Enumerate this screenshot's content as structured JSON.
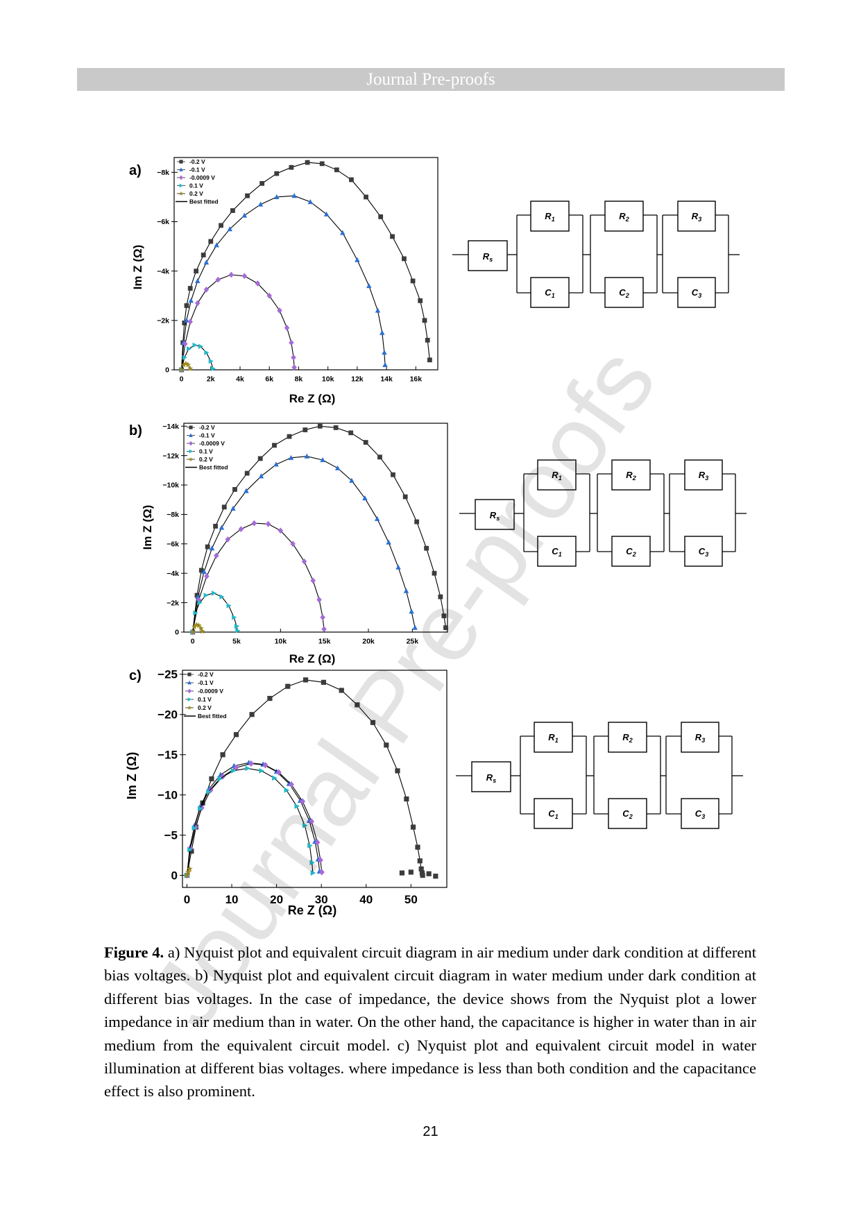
{
  "header": {
    "journal": "Journal Pre-proofs"
  },
  "watermark": "Journal Pre-proofs",
  "colors": {
    "-0.2 V": "#3c3c3c",
    "-0.1 V": "#2c6fd3",
    "-0.0009 V": "#a56bd6",
    "0.1 V": "#22b8c9",
    "0.2 V": "#9a8a1e",
    "fit": "#000000"
  },
  "legend_labels": [
    "-0.2 V",
    "-0.1 V",
    "-0.0009 V",
    "0.1 V",
    "0.2 V",
    "Best fitted"
  ],
  "circuit_labels": {
    "rs": "R_s",
    "r": [
      "R_1",
      "R_2",
      "R_3"
    ],
    "c": [
      "C_1",
      "C_2",
      "C_3"
    ]
  },
  "chart_data": [
    {
      "panel": "a)",
      "type": "scatter",
      "xlabel": "Re Z (Ω)",
      "ylabel": "Im Z (Ω)",
      "xlim": [
        -500,
        17500
      ],
      "ylim": [
        0,
        -8600
      ],
      "xticks": [
        0,
        2000,
        4000,
        6000,
        8000,
        10000,
        12000,
        14000,
        16000
      ],
      "xtick_labels": [
        "0",
        "2k",
        "4k",
        "6k",
        "8k",
        "10k",
        "12k",
        "14k",
        "16k"
      ],
      "yticks": [
        0,
        -2000,
        -4000,
        -6000,
        -8000
      ],
      "ytick_labels": [
        "0",
        "−2k",
        "−4k",
        "−6k",
        "−8k"
      ],
      "legend": "top-left",
      "series": [
        {
          "name": "-0.2 V",
          "marker": "square",
          "x": [
            0,
            100,
            200,
            350,
            600,
            1000,
            1500,
            2000,
            2700,
            3500,
            4500,
            5500,
            6500,
            7500,
            8600,
            9600,
            10600,
            11600,
            12600,
            13600,
            14400,
            15200,
            15800,
            16300,
            16600,
            16800,
            16950
          ],
          "y": [
            0,
            -1100,
            -1900,
            -2600,
            -3300,
            -4000,
            -4650,
            -5200,
            -5850,
            -6450,
            -7050,
            -7550,
            -7950,
            -8200,
            -8400,
            -8350,
            -8100,
            -7700,
            -7000,
            -6200,
            -5400,
            -4500,
            -3600,
            -2800,
            -2000,
            -1200,
            -400
          ]
        },
        {
          "name": "-0.1 V",
          "marker": "triangle",
          "x": [
            0,
            150,
            350,
            650,
            1100,
            1700,
            2400,
            3300,
            4300,
            5400,
            6500,
            7700,
            8800,
            9900,
            11000,
            12000,
            12800,
            13400,
            13700,
            13850,
            13900
          ],
          "y": [
            0,
            -1100,
            -2000,
            -2800,
            -3600,
            -4350,
            -5050,
            -5700,
            -6250,
            -6700,
            -7000,
            -7050,
            -6800,
            -6300,
            -5550,
            -4450,
            -3400,
            -2400,
            -1500,
            -700,
            -200
          ]
        },
        {
          "name": "-0.0009 V",
          "marker": "diamond",
          "x": [
            0,
            250,
            600,
            1100,
            1700,
            2500,
            3400,
            4300,
            5200,
            6000,
            6700,
            7200,
            7500,
            7650,
            7700
          ],
          "y": [
            0,
            -1050,
            -1950,
            -2700,
            -3250,
            -3650,
            -3850,
            -3800,
            -3500,
            -3000,
            -2400,
            -1700,
            -1100,
            -500,
            -100
          ]
        },
        {
          "name": "0.1 V",
          "marker": "triangle-right",
          "x": [
            0,
            200,
            500,
            900,
            1300,
            1700,
            2000,
            2150
          ],
          "y": [
            0,
            -500,
            -850,
            -1000,
            -950,
            -700,
            -350,
            -50
          ]
        },
        {
          "name": "0.2 V",
          "marker": "star",
          "x": [
            0,
            150,
            300,
            450,
            600
          ],
          "y": [
            0,
            -200,
            -250,
            -200,
            -50
          ]
        }
      ]
    },
    {
      "panel": "b)",
      "type": "scatter",
      "xlabel": "Re Z (Ω)",
      "ylabel": "Im Z (Ω)",
      "xlim": [
        -1000,
        29000
      ],
      "ylim": [
        0,
        -14200
      ],
      "xticks": [
        0,
        5000,
        10000,
        15000,
        20000,
        25000
      ],
      "xtick_labels": [
        "0",
        "5k",
        "10k",
        "15k",
        "20k",
        "25k"
      ],
      "yticks": [
        0,
        -2000,
        -4000,
        -6000,
        -8000,
        -10000,
        -12000,
        -14000
      ],
      "ytick_labels": [
        "0",
        "−2k",
        "−4k",
        "−6k",
        "−8k",
        "−10k",
        "−12k",
        "−14k"
      ],
      "legend": "top-left",
      "series": [
        {
          "name": "-0.2 V",
          "marker": "square",
          "x": [
            0,
            500,
            1000,
            1700,
            2600,
            3600,
            4800,
            6200,
            7700,
            9300,
            11000,
            12800,
            14500,
            16300,
            18000,
            19700,
            21300,
            22800,
            24200,
            25500,
            26600,
            27500,
            28200,
            28600,
            28800
          ],
          "y": [
            0,
            -2500,
            -4200,
            -5800,
            -7200,
            -8500,
            -9700,
            -10800,
            -11800,
            -12700,
            -13300,
            -13750,
            -14000,
            -13900,
            -13550,
            -12900,
            -11900,
            -10700,
            -9200,
            -7500,
            -5700,
            -4000,
            -2400,
            -1100,
            -300
          ]
        },
        {
          "name": "-0.1 V",
          "marker": "triangle",
          "x": [
            0,
            600,
            1300,
            2200,
            3300,
            4600,
            6100,
            7800,
            9500,
            11200,
            13000,
            14800,
            16500,
            18100,
            19600,
            21000,
            22300,
            23400,
            24300,
            24900,
            25300
          ],
          "y": [
            0,
            -2400,
            -4100,
            -5700,
            -7100,
            -8400,
            -9600,
            -10600,
            -11400,
            -11850,
            -11950,
            -11700,
            -11150,
            -10300,
            -9100,
            -7700,
            -6100,
            -4400,
            -2800,
            -1400,
            -300
          ]
        },
        {
          "name": "-0.0009 V",
          "marker": "diamond",
          "x": [
            0,
            700,
            1600,
            2700,
            4000,
            5500,
            7000,
            8600,
            10000,
            11400,
            12700,
            13700,
            14400,
            14800,
            14950
          ],
          "y": [
            0,
            -2200,
            -3800,
            -5200,
            -6300,
            -7000,
            -7400,
            -7350,
            -6900,
            -6000,
            -4800,
            -3500,
            -2200,
            -1000,
            -200
          ]
        },
        {
          "name": "0.1 V",
          "marker": "triangle-right",
          "x": [
            0,
            300,
            800,
            1500,
            2400,
            3300,
            4100,
            4700,
            5000,
            5100
          ],
          "y": [
            0,
            -1300,
            -2000,
            -2500,
            -2650,
            -2400,
            -1800,
            -1000,
            -400,
            -100
          ]
        },
        {
          "name": "0.2 V",
          "marker": "star",
          "x": [
            0,
            200,
            450,
            700,
            950,
            1100
          ],
          "y": [
            0,
            -350,
            -500,
            -450,
            -250,
            -50
          ]
        }
      ]
    },
    {
      "panel": "c)",
      "type": "scatter",
      "xlabel": "Re Z (Ω)",
      "ylabel": "Im Z (Ω)",
      "xlim": [
        -1,
        58
      ],
      "ylim": [
        1.5,
        -25.5
      ],
      "xticks": [
        0,
        10,
        20,
        30,
        40,
        50
      ],
      "xtick_labels": [
        "0",
        "10",
        "20",
        "30",
        "40",
        "50"
      ],
      "yticks": [
        0,
        -5,
        -10,
        -15,
        -20,
        -25
      ],
      "ytick_labels": [
        "0",
        "−5",
        "−10",
        "−15",
        "−20",
        "−25"
      ],
      "legend": "top-left",
      "series": [
        {
          "name": "-0.2 V",
          "marker": "square",
          "x": [
            0,
            1,
            2,
            3.5,
            5.5,
            8,
            11,
            14.5,
            18.5,
            22.5,
            26.5,
            30.5,
            34.5,
            38,
            41.5,
            44.5,
            47,
            49,
            50.5,
            51.5,
            52,
            52.3,
            52.5,
            52.6,
            50,
            54,
            55.5,
            48
          ],
          "y": [
            0,
            -3,
            -6,
            -9,
            -12,
            -15,
            -17.5,
            -20,
            -22,
            -23.5,
            -24.3,
            -24,
            -23,
            -21.2,
            -19,
            -16.2,
            -13,
            -9.5,
            -6,
            -3.5,
            -1.8,
            -0.8,
            -0.3,
            0,
            -0.4,
            -0.2,
            0.1,
            -0.3
          ]
        },
        {
          "name": "-0.1 V",
          "marker": "triangle",
          "x": [
            0,
            0.7,
            1.7,
            3,
            5,
            7.5,
            10.5,
            13.8,
            17,
            20,
            22.8,
            25.3,
            27.3,
            28.6,
            29.3,
            29.6
          ],
          "y": [
            0,
            -3.5,
            -6.2,
            -8.6,
            -10.8,
            -12.5,
            -13.6,
            -14,
            -13.8,
            -12.9,
            -11.4,
            -9.3,
            -6.8,
            -4.2,
            -2,
            -0.5
          ]
        },
        {
          "name": "-0.0009 V",
          "marker": "diamond",
          "x": [
            0,
            0.8,
            1.9,
            3.3,
            5.3,
            8,
            11,
            14.3,
            17.5,
            20.5,
            23.3,
            25.8,
            27.8,
            29.1,
            29.8,
            30.1
          ],
          "y": [
            0,
            -3.4,
            -6,
            -8.4,
            -10.6,
            -12.3,
            -13.4,
            -13.9,
            -13.7,
            -12.8,
            -11.3,
            -9.2,
            -6.7,
            -4.1,
            -1.9,
            -0.4
          ]
        },
        {
          "name": "0.1 V",
          "marker": "triangle-right",
          "x": [
            0,
            0.6,
            1.6,
            2.9,
            4.8,
            7.3,
            10.3,
            13.5,
            16.6,
            19.5,
            22.2,
            24.5,
            26.3,
            27.4,
            27.9,
            28.1
          ],
          "y": [
            0,
            -3.2,
            -5.9,
            -8.3,
            -10.4,
            -12,
            -13,
            -13.3,
            -13,
            -12.1,
            -10.6,
            -8.6,
            -6.2,
            -3.7,
            -1.6,
            -0.3
          ]
        },
        {
          "name": "0.2 V",
          "marker": "star",
          "x": [
            0,
            0.3,
            0.6
          ],
          "y": [
            0,
            -0.4,
            -0.8
          ]
        }
      ]
    }
  ],
  "caption": {
    "label": "Figure 4.",
    "text": " a) Nyquist plot and equivalent circuit diagram in air medium under dark condition at different bias voltages. b) Nyquist plot and equivalent circuit diagram in water medium under dark condition at different bias voltages. In the case of impedance, the device shows from the Nyquist plot a lower impedance in air medium than in water. On the other hand, the capacitance is higher in water than in air medium from the equivalent circuit model. c) Nyquist plot and equivalent circuit model in water illumination at different bias voltages. where impedance is less than both condition and the capacitance effect is also prominent."
  },
  "page_number": "21"
}
